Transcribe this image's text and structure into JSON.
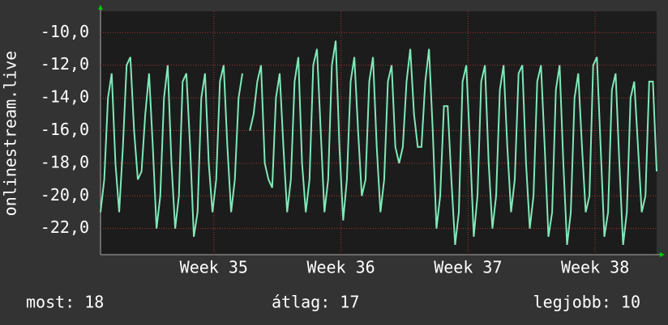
{
  "chart_data": {
    "type": "line",
    "y_label": "onlinestream.live",
    "xlim": [
      34.108,
      38.484
    ],
    "xticks": [
      {
        "value": 35,
        "label": "Week 35"
      },
      {
        "value": 36,
        "label": "Week 36"
      },
      {
        "value": 37,
        "label": "Week 37"
      },
      {
        "value": 38,
        "label": "Week 38"
      }
    ],
    "ylim": [
      -23.6,
      -8.7
    ],
    "yticks": [
      {
        "value": -22,
        "label": "-22,0"
      },
      {
        "value": -20,
        "label": "-20,0"
      },
      {
        "value": -18,
        "label": "-18,0"
      },
      {
        "value": -16,
        "label": "-16,0"
      },
      {
        "value": -14,
        "label": "-14,0"
      },
      {
        "value": -12,
        "label": "-12,0"
      },
      {
        "value": -10,
        "label": "-10,0"
      }
    ],
    "grid": true,
    "series": [
      {
        "color": "#7fe8b8",
        "values": [
          -21,
          -19,
          -14,
          -12.5,
          -18,
          -21,
          -17,
          -12,
          -11.5,
          -16,
          -19,
          -18.5,
          -15,
          -12.5,
          -17,
          -22,
          -20,
          -14,
          -12,
          -18,
          -22,
          -20,
          -13,
          -12.5,
          -17,
          -22.5,
          -21,
          -14,
          -12.5,
          -18,
          -21,
          -19,
          -13,
          -12,
          -17,
          -21,
          -19,
          -14,
          -12.5,
          null,
          -16,
          -15,
          -13,
          -12,
          -18,
          -19,
          -19.5,
          -14,
          -12.5,
          -17,
          -21,
          -19,
          -13,
          -11.5,
          -18,
          -21,
          -19,
          -12,
          -11,
          -16,
          -21,
          -19,
          -12,
          -10.5,
          -17,
          -21.5,
          -19,
          -13,
          -11.5,
          -16,
          -20,
          -19,
          -13,
          -11.5,
          -17,
          -21,
          -19,
          -13,
          -12,
          -17,
          -18,
          -17,
          -13,
          -11,
          -15,
          -17,
          -17,
          -13,
          -11,
          -16,
          -22,
          -20,
          -14.5,
          -14.5,
          -19,
          -23,
          -21,
          -13,
          -12,
          -17,
          -22.5,
          -20,
          -13,
          -12,
          -18,
          -22,
          -20,
          -13.5,
          -12,
          -17,
          -21,
          -19,
          -12.5,
          -12,
          -18,
          -22,
          -20,
          -13,
          -12,
          -17,
          -22.5,
          -21,
          -13.5,
          -12,
          -18,
          -23,
          -21,
          -14,
          -12.5,
          -17,
          -21,
          -20,
          -12,
          -11.5,
          -17,
          -22.5,
          -21,
          -13.5,
          -12.5,
          -18,
          -23,
          -21,
          -14,
          -13,
          -17,
          -21,
          -20,
          -13,
          -13,
          -18.5
        ]
      }
    ],
    "stats": [
      "most: 18",
      "átlag: 17",
      "legjobb: 10"
    ]
  }
}
